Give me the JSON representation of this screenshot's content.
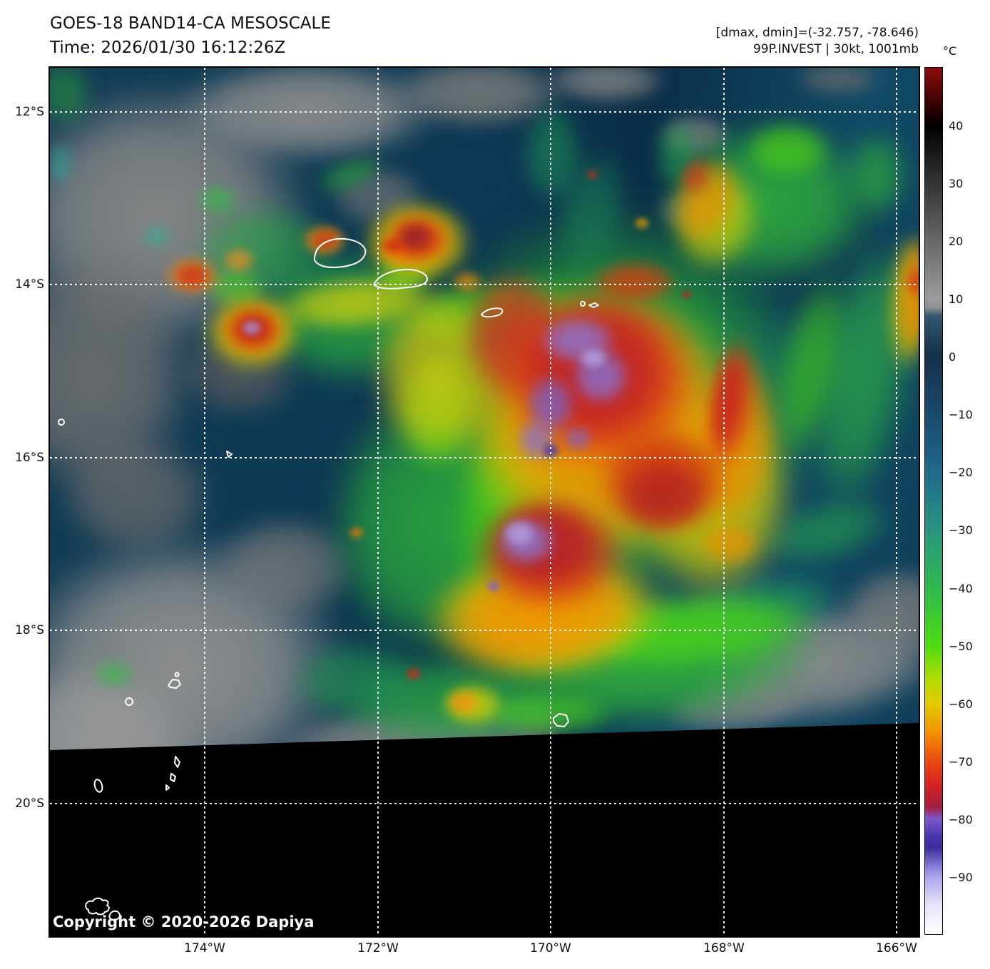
{
  "header": {
    "title_line1": "GOES-18 BAND14-CA MESOSCALE",
    "title_line2": "Time: 2026/01/30 16:12:26Z",
    "dminmax": "[dmax, dmin]=(-32.757, -78.646)",
    "storm_info": "99P.INVEST | 30kt, 1001mb"
  },
  "colorbar": {
    "unit": "°C",
    "ticks": [
      "40",
      "30",
      "20",
      "10",
      "0",
      "−10",
      "−20",
      "−30",
      "−40",
      "−50",
      "−60",
      "−70",
      "−80",
      "−90"
    ],
    "range_top_c": 50,
    "range_bottom_c": -100,
    "gradient_stops": [
      {
        "temp_c": 50,
        "color": "#8f0a0a"
      },
      {
        "temp_c": 44,
        "color": "#3a0303"
      },
      {
        "temp_c": 40,
        "color": "#000000"
      },
      {
        "temp_c": 10,
        "color": "#9c9c9c"
      },
      {
        "temp_c": 8.5,
        "color": "#8f9097"
      },
      {
        "temp_c": 7,
        "color": "#31566f"
      },
      {
        "temp_c": 0,
        "color": "#143049"
      },
      {
        "temp_c": -10,
        "color": "#1a4a6e"
      },
      {
        "temp_c": -20,
        "color": "#20698a"
      },
      {
        "temp_c": -30,
        "color": "#2a9480"
      },
      {
        "temp_c": -40,
        "color": "#2fb951"
      },
      {
        "temp_c": -50,
        "color": "#4fdb12"
      },
      {
        "temp_c": -56,
        "color": "#b4dc00"
      },
      {
        "temp_c": -60,
        "color": "#e3cb00"
      },
      {
        "temp_c": -65,
        "color": "#f29400"
      },
      {
        "temp_c": -70,
        "color": "#ea4b10"
      },
      {
        "temp_c": -74,
        "color": "#d42222"
      },
      {
        "temp_c": -78,
        "color": "#a21f3e"
      },
      {
        "temp_c": -80,
        "color": "#7e57c8"
      },
      {
        "temp_c": -83,
        "color": "#4c35ad"
      },
      {
        "temp_c": -85,
        "color": "#3b2d96"
      },
      {
        "temp_c": -88,
        "color": "#8077d2"
      },
      {
        "temp_c": -90,
        "color": "#aaa4ea"
      },
      {
        "temp_c": -95,
        "color": "#e6e4fb"
      },
      {
        "temp_c": -100,
        "color": "#ffffff"
      }
    ]
  },
  "axes": {
    "lat_labels": [
      "12°S",
      "14°S",
      "16°S",
      "18°S",
      "20°S"
    ],
    "lon_labels": [
      "174°W",
      "172°W",
      "170°W",
      "168°W",
      "166°W"
    ]
  },
  "map": {
    "copyright": "Copyright © 2020-2026 Dapiya"
  }
}
